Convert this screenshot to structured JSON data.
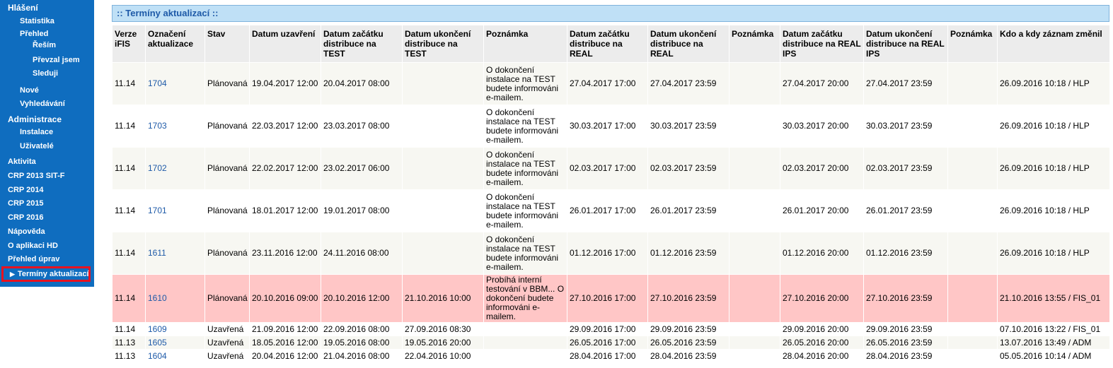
{
  "sidebar": {
    "sections": [
      {
        "label": "Hlášení",
        "kind": "head"
      },
      {
        "label": "Statistika",
        "kind": "sub"
      },
      {
        "label": "Přehled",
        "kind": "sub"
      },
      {
        "label": "Řeším",
        "kind": "subsub"
      },
      {
        "label": "Převzal jsem",
        "kind": "subsub"
      },
      {
        "label": "Sleduji",
        "kind": "subsub"
      },
      {
        "label": "Nové",
        "kind": "sub"
      },
      {
        "label": "Vyhledávání",
        "kind": "sub"
      },
      {
        "label": "Administrace",
        "kind": "head"
      },
      {
        "label": "Instalace",
        "kind": "sub"
      },
      {
        "label": "Uživatelé",
        "kind": "sub"
      },
      {
        "label": "Aktivita",
        "kind": "top"
      },
      {
        "label": "CRP 2013 SIT-F",
        "kind": "top"
      },
      {
        "label": "CRP 2014",
        "kind": "top"
      },
      {
        "label": "CRP 2015",
        "kind": "top"
      },
      {
        "label": "CRP 2016",
        "kind": "top"
      },
      {
        "label": "Nápověda",
        "kind": "top"
      },
      {
        "label": "O aplikaci HD",
        "kind": "top"
      },
      {
        "label": "Přehled úprav",
        "kind": "top"
      },
      {
        "label": "Termíny aktualizací",
        "kind": "active"
      }
    ],
    "active_arrow": "▶"
  },
  "panel": {
    "title": ":: Termíny aktualizací ::"
  },
  "table": {
    "headers": [
      "Verze iFIS",
      "Označení aktualizace",
      "Stav",
      "Datum uzavření",
      "Datum začátku distribuce na TEST",
      "Datum ukončení distribuce na TEST",
      "Poznámka",
      "Datum začátku distribuce na REAL",
      "Datum ukončení distribuce na REAL",
      "Poznámka",
      "Datum začátku distribuce na REAL IPS",
      "Datum ukončení distribuce na REAL IPS",
      "Poznámka",
      "Kdo a kdy záznam změnil"
    ],
    "rows": [
      {
        "style": "alt",
        "size": "tall",
        "cells": [
          "11.14",
          "1704",
          "Plánovaná",
          "19.04.2017 12:00",
          "20.04.2017 08:00",
          "",
          "O dokončení instalace na TEST budete informováni e-mailem.",
          "27.04.2017 17:00",
          "27.04.2017 23:59",
          "",
          "27.04.2017 20:00",
          "27.04.2017 23:59",
          "",
          "26.09.2016 10:18 / HLP"
        ]
      },
      {
        "style": "white",
        "size": "tall",
        "cells": [
          "11.14",
          "1703",
          "Plánovaná",
          "22.03.2017 12:00",
          "23.03.2017 08:00",
          "",
          "O dokončení instalace na TEST budete informováni e-mailem.",
          "30.03.2017 17:00",
          "30.03.2017 23:59",
          "",
          "30.03.2017 20:00",
          "30.03.2017 23:59",
          "",
          "26.09.2016 10:18 / HLP"
        ]
      },
      {
        "style": "alt",
        "size": "tall",
        "cells": [
          "11.14",
          "1702",
          "Plánovaná",
          "22.02.2017 12:00",
          "23.02.2017 06:00",
          "",
          "O dokončení instalace na TEST budete informováni e-mailem.",
          "02.03.2017 17:00",
          "02.03.2017 23:59",
          "",
          "02.03.2017 20:00",
          "02.03.2017 23:59",
          "",
          "26.09.2016 10:18 / HLP"
        ]
      },
      {
        "style": "white",
        "size": "tall",
        "cells": [
          "11.14",
          "1701",
          "Plánovaná",
          "18.01.2017 12:00",
          "19.01.2017 08:00",
          "",
          "O dokončení instalace na TEST budete informováni e-mailem.",
          "26.01.2017 17:00",
          "26.01.2017 23:59",
          "",
          "26.01.2017 20:00",
          "26.01.2017 23:59",
          "",
          "26.09.2016 10:18 / HLP"
        ]
      },
      {
        "style": "alt",
        "size": "tall",
        "cells": [
          "11.14",
          "1611",
          "Plánovaná",
          "23.11.2016 12:00",
          "24.11.2016 08:00",
          "",
          "O dokončení instalace na TEST budete informováni e-mailem.",
          "01.12.2016 17:00",
          "01.12.2016 23:59",
          "",
          "01.12.2016 20:00",
          "01.12.2016 23:59",
          "",
          "26.09.2016 10:18 / HLP"
        ]
      },
      {
        "style": "pink",
        "size": "tall",
        "cells": [
          "11.14",
          "1610",
          "Plánovaná",
          "20.10.2016 09:00",
          "20.10.2016 12:00",
          "21.10.2016 10:00",
          "Probíhá interní testování v BBM... O dokončení budete informováni e-mailem.",
          "27.10.2016 17:00",
          "27.10.2016 23:59",
          "",
          "27.10.2016 20:00",
          "27.10.2016 23:59",
          "",
          "21.10.2016 13:55 / FIS_01"
        ]
      },
      {
        "style": "white",
        "size": "short",
        "cells": [
          "11.14",
          "1609",
          "Uzavřená",
          "21.09.2016 12:00",
          "22.09.2016 08:00",
          "27.09.2016 08:30",
          "",
          "29.09.2016 17:00",
          "29.09.2016 23:59",
          "",
          "29.09.2016 20:00",
          "29.09.2016 23:59",
          "",
          "07.10.2016 13:22 / FIS_01"
        ]
      },
      {
        "style": "alt",
        "size": "short",
        "cells": [
          "11.13",
          "1605",
          "Uzavřená",
          "18.05.2016 12:00",
          "19.05.2016 08:00",
          "19.05.2016 20:00",
          "",
          "26.05.2016 17:00",
          "26.05.2016 23:59",
          "",
          "26.05.2016 20:00",
          "26.05.2016 23:59",
          "",
          "13.07.2016 13:49 / ADM"
        ]
      },
      {
        "style": "white",
        "size": "short",
        "cells": [
          "11.13",
          "1604",
          "Uzavřená",
          "20.04.2016 12:00",
          "21.04.2016 08:00",
          "22.04.2016 10:00",
          "",
          "28.04.2016 17:00",
          "28.04.2016 23:59",
          "",
          "28.04.2016 20:00",
          "28.04.2016 23:59",
          "",
          "05.05.2016 10:14 / ADM"
        ]
      }
    ]
  },
  "colors": {
    "sidebar_bg": "#0f6dbf",
    "panel_title_bg": "#bfe0f6",
    "link": "#1e5aa8",
    "highlight_row": "#ffc6c6",
    "active_border": "#e8121f"
  }
}
